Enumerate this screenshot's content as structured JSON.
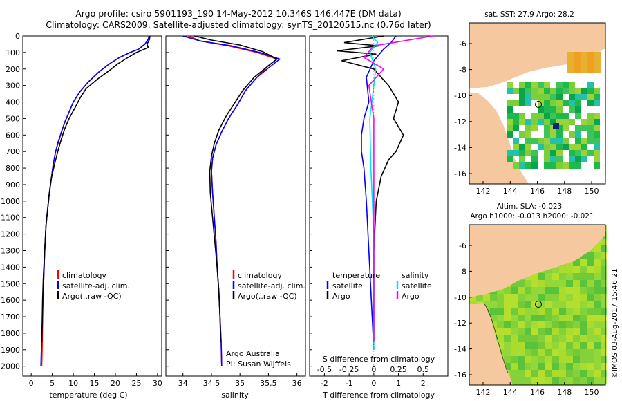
{
  "header": {
    "line1": "Argo profile: csiro 5901193_190 14-May-2012 10.346S 146.447E (DM data)",
    "line2": "Climatology: CARS2009. Satellite-adjusted climatology: synTS_20120515.nc (0.76d later)"
  },
  "colors": {
    "climatology": "#ff0000",
    "satellite": "#0000ff",
    "argo": "#000000",
    "salinity_satellite": "#00e5ee",
    "salinity_argo": "#ff00ff",
    "land": "#f5c8a0"
  },
  "legend": {
    "climatology": "climatology",
    "satellite_adj": "satellite-adj. clim.",
    "argo_raw": "Argo(..raw -QC)",
    "temperature": "temperature",
    "salinity": "salinity",
    "satellite": "satellite",
    "argo": "Argo"
  },
  "credit": {
    "line1": "Argo Australia",
    "line2": "PI: Susan Wijffels"
  },
  "sat_sst_label": "sat. SST: 27.9 Argo: 28.2",
  "altim_label1": "Altim. SLA: -0.023",
  "altim_label2": "Argo h1000: -0.013 h2000: -0.021",
  "timestamp": "©IMOS 03-Aug-2017 15:46:21",
  "depth_ticks": [
    "0",
    "100",
    "200",
    "300",
    "400",
    "500",
    "600",
    "700",
    "800",
    "900",
    "1000",
    "1100",
    "1200",
    "1300",
    "1400",
    "1500",
    "1600",
    "1700",
    "1800",
    "1900",
    "2000"
  ],
  "chart_data": [
    {
      "type": "line",
      "name": "temperature",
      "xlabel": "temperature (deg C)",
      "ylabel": "",
      "xlim": [
        -2,
        31
      ],
      "ylim": [
        2060,
        0
      ],
      "xticks": [
        "0",
        "5",
        "10",
        "15",
        "20",
        "25",
        "30"
      ],
      "series": [
        {
          "name": "climatology",
          "color": "#ff0000",
          "x": [
            28.0,
            27.8,
            27.0,
            25.5,
            23.5,
            21.0,
            18.5,
            16.0,
            13.5,
            11.5,
            10.0,
            9.0,
            8.0,
            7.2,
            6.5,
            5.8,
            5.2,
            4.8,
            4.3,
            3.9,
            3.5,
            3.2,
            3.0,
            2.8,
            2.7,
            2.6,
            2.5
          ],
          "y": [
            0,
            20,
            50,
            80,
            100,
            130,
            170,
            220,
            280,
            340,
            400,
            460,
            520,
            580,
            640,
            700,
            780,
            860,
            950,
            1050,
            1150,
            1300,
            1450,
            1600,
            1750,
            1900,
            2000
          ]
        },
        {
          "name": "satellite-adj. clim.",
          "color": "#0000ff",
          "x": [
            28.0,
            27.8,
            27.0,
            25.5,
            23.5,
            21.0,
            18.5,
            16.0,
            13.5,
            11.5,
            10.0,
            9.0,
            8.0,
            7.2,
            6.4,
            5.8,
            5.2,
            4.8,
            4.3,
            3.9,
            3.5,
            3.2,
            3.0,
            2.8,
            2.6,
            2.4,
            2.3
          ],
          "y": [
            0,
            20,
            50,
            80,
            100,
            130,
            170,
            220,
            280,
            340,
            400,
            460,
            520,
            580,
            640,
            700,
            780,
            860,
            950,
            1050,
            1150,
            1300,
            1450,
            1600,
            1750,
            1900,
            2000
          ]
        },
        {
          "name": "Argo(..raw -QC)",
          "color": "#000000",
          "x": [
            28.2,
            28.1,
            27.5,
            27.8,
            25.0,
            23.0,
            20.5,
            18.5,
            15.8,
            13.0,
            11.5,
            10.5,
            9.0,
            8.0,
            7.2,
            6.3,
            5.5,
            4.8,
            4.3,
            3.9,
            3.5,
            3.2,
            2.9,
            2.7,
            2.6,
            2.5
          ],
          "y": [
            0,
            20,
            50,
            70,
            100,
            130,
            170,
            210,
            260,
            320,
            380,
            430,
            500,
            560,
            620,
            700,
            780,
            860,
            950,
            1050,
            1150,
            1300,
            1450,
            1600,
            1750,
            1850
          ]
        }
      ]
    },
    {
      "type": "line",
      "name": "salinity",
      "xlabel": "salinity",
      "xlim": [
        33.7,
        36.15
      ],
      "ylim": [
        2060,
        0
      ],
      "xticks": [
        "34",
        "34.5",
        "35",
        "35.5",
        "36"
      ],
      "series": [
        {
          "name": "climatology",
          "color": "#ff0000",
          "x": [
            34.1,
            34.3,
            34.8,
            35.3,
            35.65,
            35.5,
            35.3,
            35.1,
            34.95,
            34.8,
            34.68,
            34.58,
            34.52,
            34.5,
            34.52,
            34.55,
            34.58,
            34.6,
            34.63,
            34.65,
            34.67,
            34.68
          ],
          "y": [
            0,
            30,
            60,
            100,
            140,
            180,
            250,
            330,
            420,
            500,
            580,
            660,
            740,
            820,
            950,
            1100,
            1250,
            1400,
            1550,
            1700,
            1850,
            2000
          ]
        },
        {
          "name": "satellite-adj. clim.",
          "color": "#0000ff",
          "x": [
            34.0,
            34.3,
            34.85,
            35.35,
            35.7,
            35.55,
            35.3,
            35.1,
            34.95,
            34.8,
            34.68,
            34.58,
            34.52,
            34.5,
            34.52,
            34.55,
            34.58,
            34.6,
            34.63,
            34.65,
            34.67,
            34.68
          ],
          "y": [
            0,
            30,
            60,
            100,
            140,
            180,
            250,
            330,
            420,
            500,
            580,
            660,
            740,
            820,
            950,
            1100,
            1250,
            1400,
            1550,
            1700,
            1850,
            2000
          ]
        },
        {
          "name": "Argo(..raw -QC)",
          "color": "#000000",
          "x": [
            34.2,
            34.5,
            35.0,
            35.4,
            35.65,
            35.5,
            35.25,
            35.05,
            34.9,
            34.75,
            34.63,
            34.55,
            34.5,
            34.47,
            34.48,
            34.52,
            34.56,
            34.6,
            34.63,
            34.65,
            34.66
          ],
          "y": [
            0,
            25,
            55,
            95,
            140,
            180,
            250,
            330,
            410,
            490,
            570,
            650,
            730,
            820,
            950,
            1100,
            1250,
            1400,
            1550,
            1700,
            1850
          ]
        }
      ]
    },
    {
      "type": "line",
      "name": "differences",
      "xlabel": "T difference from climatology",
      "xlabel_top": "S difference from climatology",
      "xlim": [
        -2.6,
        3.0
      ],
      "ylim": [
        2060,
        0
      ],
      "xticks": [
        "-2",
        "-1",
        "0",
        "1",
        "2"
      ],
      "xticks_top": [
        "-0.5",
        "-0.25",
        "0",
        "0.25",
        "0.5"
      ],
      "series": [
        {
          "name": "temperature satellite",
          "color": "#0000ff",
          "x": [
            0.9,
            0.7,
            0.4,
            0.0,
            -0.3,
            -0.2,
            -0.4,
            -0.5,
            -0.5,
            -0.4,
            -0.3,
            -0.2,
            -0.1,
            0.0
          ],
          "y": [
            0,
            40,
            80,
            150,
            250,
            400,
            500,
            600,
            700,
            800,
            1000,
            1300,
            1600,
            1900
          ]
        },
        {
          "name": "temperature Argo",
          "color": "#000000",
          "x": [
            0.4,
            -1.2,
            0.2,
            -1.5,
            0.1,
            -1.3,
            0.0,
            0.6,
            1.0,
            0.8,
            1.2,
            0.9,
            0.6,
            0.3,
            0.1,
            0.0,
            0.0,
            0.0
          ],
          "y": [
            0,
            40,
            60,
            90,
            110,
            150,
            200,
            300,
            400,
            500,
            600,
            700,
            750,
            850,
            1000,
            1300,
            1600,
            1850
          ]
        },
        {
          "name": "salinity satellite",
          "color": "#00e5ee",
          "x": [
            -0.02,
            0.04,
            -0.04,
            0.02,
            0.0,
            -0.04,
            -0.03,
            0.0,
            0.0
          ],
          "y": [
            0,
            40,
            100,
            200,
            300,
            500,
            800,
            1200,
            1900
          ]
        },
        {
          "name": "salinity Argo",
          "color": "#ff00ff",
          "x": [
            0.6,
            0.3,
            0.0,
            -0.1,
            0.1,
            -0.05,
            0.0,
            0.0,
            0.0
          ],
          "y": [
            0,
            30,
            60,
            130,
            200,
            300,
            500,
            900,
            1850
          ]
        }
      ]
    }
  ],
  "maps": {
    "sst": {
      "lat_ticks": [
        "-6",
        "-8",
        "-10",
        "-12",
        "-14",
        "-16"
      ],
      "lon_ticks": [
        "142",
        "144",
        "146",
        "148",
        "150"
      ]
    },
    "sla": {
      "lat_ticks": [
        "-6",
        "-8",
        "-10",
        "-12",
        "-14",
        "-16"
      ],
      "lon_ticks": [
        "142",
        "144",
        "146",
        "148",
        "150"
      ]
    }
  }
}
